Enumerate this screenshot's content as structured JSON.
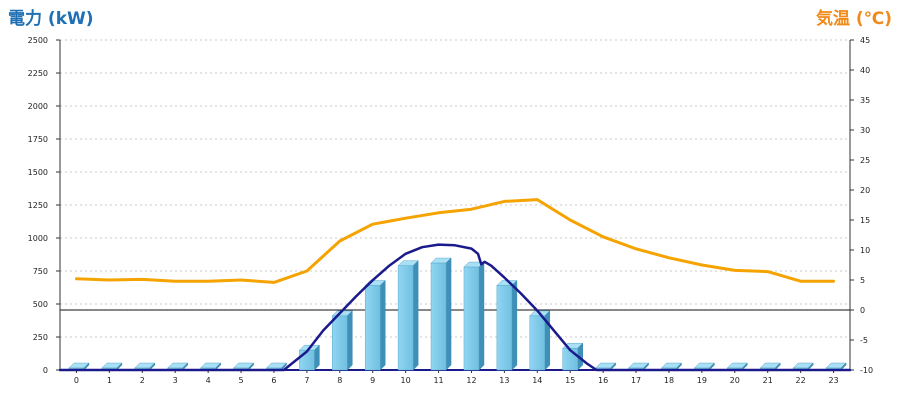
{
  "chart_data": {
    "type": "bar+line",
    "categories": [
      "0",
      "1",
      "2",
      "3",
      "4",
      "5",
      "6",
      "7",
      "8",
      "9",
      "10",
      "11",
      "12",
      "13",
      "14",
      "15",
      "16",
      "17",
      "18",
      "19",
      "20",
      "21",
      "22",
      "23"
    ],
    "y_left": {
      "label": "電力 (kW)",
      "color": "#1f6fb4",
      "range": [
        0,
        2500
      ],
      "ticks": [
        "0",
        "250",
        "500",
        "750",
        "1000",
        "1250",
        "1500",
        "1750",
        "2000",
        "2250",
        "2500"
      ]
    },
    "y_right": {
      "label": "気温 (℃)",
      "color": "#f08a1a",
      "range": [
        -10,
        45
      ],
      "ticks": [
        "-10",
        "-5",
        "0",
        "5",
        "10",
        "15",
        "20",
        "25",
        "30",
        "35",
        "40",
        "45"
      ]
    },
    "series": [
      {
        "kind": "bar",
        "axis": "left",
        "color": "#7ecbea",
        "values": [
          15,
          15,
          15,
          15,
          15,
          15,
          15,
          150,
          410,
          640,
          790,
          810,
          780,
          640,
          410,
          165,
          15,
          15,
          15,
          15,
          15,
          15,
          15,
          15
        ]
      },
      {
        "kind": "line",
        "axis": "right",
        "color": "#f5a300",
        "values": [
          5.2,
          5.0,
          5.1,
          4.8,
          4.8,
          5.0,
          4.6,
          6.5,
          11.5,
          14.3,
          15.3,
          16.2,
          16.8,
          18.1,
          18.4,
          15.0,
          12.2,
          10.2,
          8.7,
          7.5,
          6.6,
          6.4,
          4.8,
          4.8
        ]
      },
      {
        "kind": "curve",
        "axis": "left",
        "color": "#1a1a8c",
        "points": [
          [
            -0.5,
            0
          ],
          [
            6.3,
            0
          ],
          [
            7.0,
            140
          ],
          [
            7.5,
            300
          ],
          [
            8.0,
            430
          ],
          [
            8.5,
            560
          ],
          [
            9.0,
            680
          ],
          [
            9.5,
            790
          ],
          [
            10.0,
            880
          ],
          [
            10.5,
            930
          ],
          [
            11.0,
            950
          ],
          [
            11.5,
            945
          ],
          [
            12.0,
            920
          ],
          [
            12.2,
            880
          ],
          [
            12.3,
            800
          ],
          [
            12.4,
            820
          ],
          [
            12.6,
            790
          ],
          [
            13.0,
            700
          ],
          [
            13.5,
            580
          ],
          [
            14.0,
            450
          ],
          [
            14.5,
            300
          ],
          [
            15.0,
            150
          ],
          [
            15.5,
            50
          ],
          [
            15.8,
            0
          ],
          [
            23.5,
            0
          ]
        ]
      }
    ],
    "grid": true
  }
}
